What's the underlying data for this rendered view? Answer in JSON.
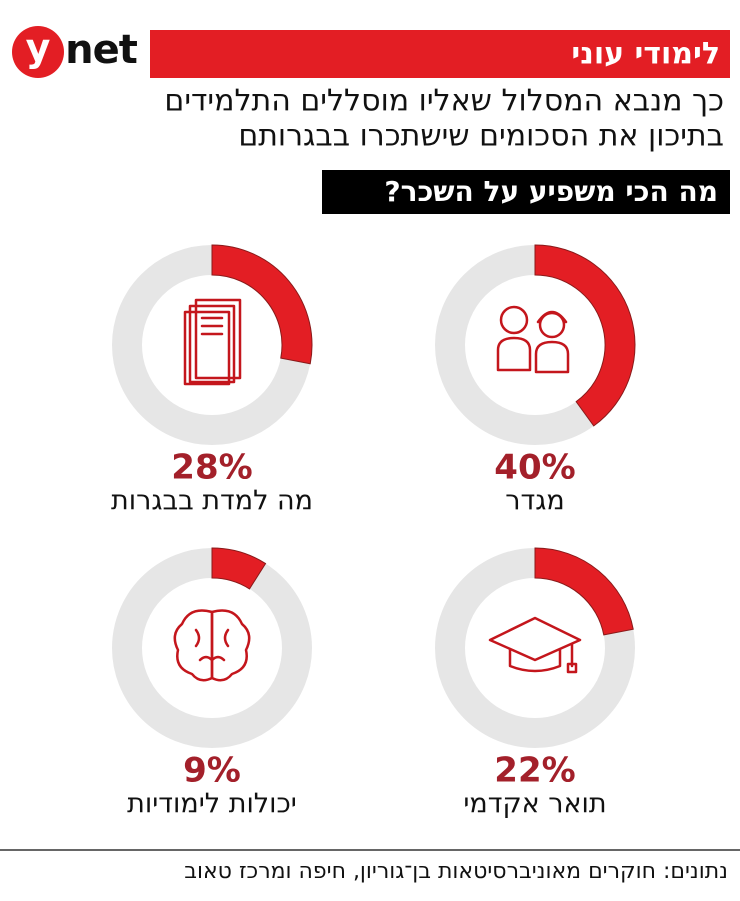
{
  "header": {
    "logo": [
      "y",
      "net"
    ],
    "section": "לימודי עוני",
    "title_lines": [
      "כך מנבא המסלול שאליו מוסללים התלמידים",
      "בתיכון את הסכומים שישתכרו בבגרותם"
    ],
    "question": "מה הכי משפיע על השכר?"
  },
  "chart_data": [
    {
      "type": "donut",
      "label": "מגדר",
      "values": [
        40
      ],
      "value_labels": [
        "40%"
      ],
      "color": "#e31e24",
      "track_color": "#e6e6e6"
    },
    {
      "type": "donut",
      "label": "מה למדת בבגרות",
      "values": [
        28
      ],
      "value_labels": [
        "28%"
      ],
      "color": "#e31e24",
      "track_color": "#e6e6e6"
    },
    {
      "type": "donut",
      "label": "תואר אקדמי",
      "values": [
        22
      ],
      "value_labels": [
        "22%"
      ],
      "color": "#e31e24",
      "track_color": "#e6e6e6"
    },
    {
      "type": "donut",
      "label": "יכולות לימודיות",
      "values": [
        9
      ],
      "value_labels": [
        "9%"
      ],
      "color": "#e31e24",
      "track_color": "#e6e6e6"
    }
  ],
  "source": "נתונים: חוקרים מאוניברסיטאות בן־גוריון, חיפה ומרכז טאוב"
}
